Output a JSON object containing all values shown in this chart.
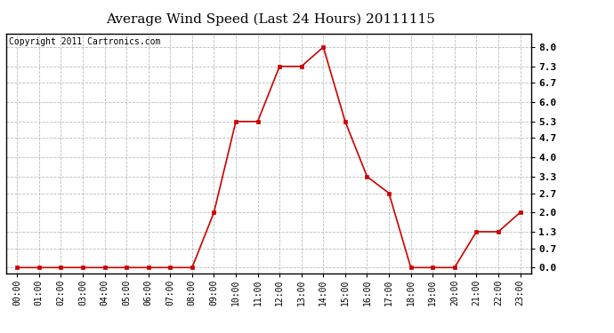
{
  "title": "Average Wind Speed (Last 24 Hours) 20111115",
  "copyright": "Copyright 2011 Cartronics.com",
  "x_labels": [
    "00:00",
    "01:00",
    "02:00",
    "03:00",
    "04:00",
    "05:00",
    "06:00",
    "07:00",
    "08:00",
    "09:00",
    "10:00",
    "11:00",
    "12:00",
    "13:00",
    "14:00",
    "15:00",
    "16:00",
    "17:00",
    "18:00",
    "19:00",
    "20:00",
    "21:00",
    "22:00",
    "23:00"
  ],
  "y_values": [
    0.0,
    0.0,
    0.0,
    0.0,
    0.0,
    0.0,
    0.0,
    0.0,
    0.0,
    2.0,
    5.3,
    5.3,
    7.3,
    7.3,
    8.0,
    5.3,
    3.3,
    2.7,
    0.0,
    0.0,
    0.0,
    1.3,
    1.3,
    2.0
  ],
  "line_color": "#cc0000",
  "marker_color": "#cc0000",
  "bg_color": "#ffffff",
  "plot_bg_color": "#ffffff",
  "grid_color": "#bbbbbb",
  "yticks": [
    0.0,
    0.7,
    1.3,
    2.0,
    2.7,
    3.3,
    4.0,
    4.7,
    5.3,
    6.0,
    6.7,
    7.3,
    8.0
  ],
  "ylim": [
    -0.2,
    8.5
  ],
  "title_fontsize": 11,
  "copyright_fontsize": 7,
  "tick_fontsize": 7,
  "ytick_fontsize": 8
}
